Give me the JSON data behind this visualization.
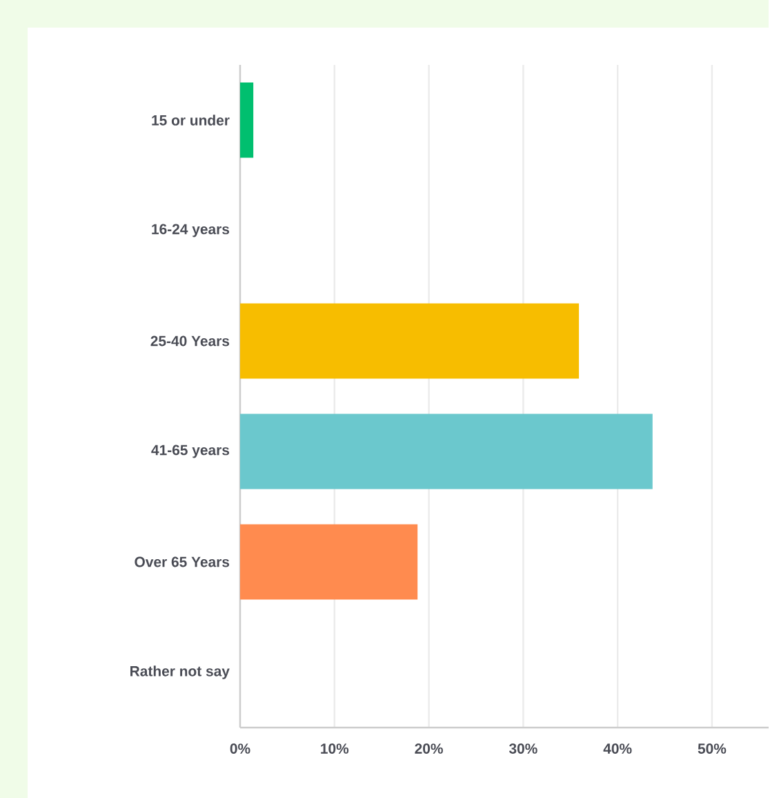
{
  "chart_data": {
    "type": "bar",
    "orientation": "horizontal",
    "categories": [
      "15 or under",
      "16-24 years",
      "25-40 Years",
      "41-65 years",
      "Over 65 Years",
      "Rather not say"
    ],
    "values": [
      1.4,
      0,
      35.9,
      43.7,
      18.8,
      0
    ],
    "colors": [
      "#00bf6f",
      "#f7bd00",
      "#f7bd00",
      "#6bc8cd",
      "#ff8b4f",
      "#6bc8cd"
    ],
    "xlim": [
      0,
      56
    ],
    "xticks": [
      {
        "value": 0,
        "label": "0%"
      },
      {
        "value": 10,
        "label": "10%"
      },
      {
        "value": 20,
        "label": "20%"
      },
      {
        "value": 30,
        "label": "30%"
      },
      {
        "value": 40,
        "label": "40%"
      },
      {
        "value": 50,
        "label": "50%"
      }
    ],
    "grid": "x"
  }
}
